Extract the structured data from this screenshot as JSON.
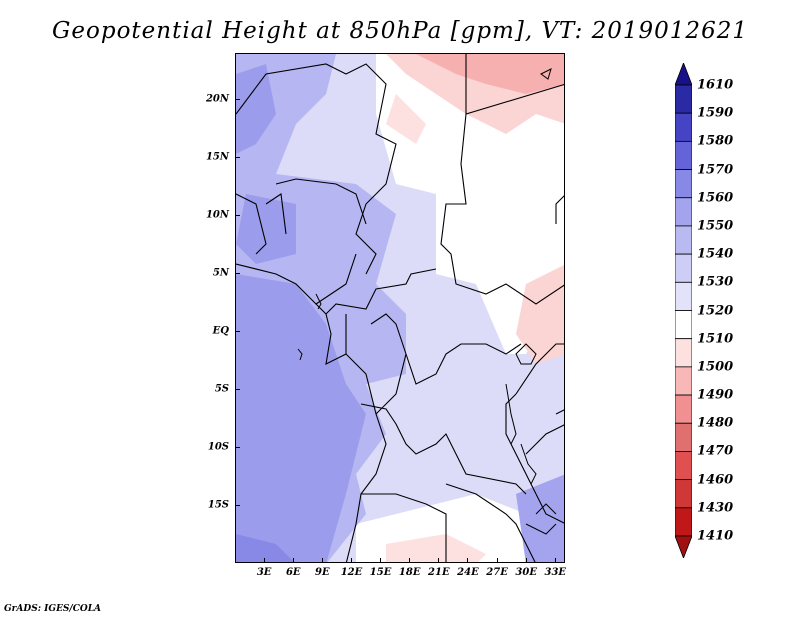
{
  "title": "Geopotential Height at 850hPa [gpm], VT: 2019012621",
  "credit": "GrADS: IGES/COLA",
  "map": {
    "lon_range": [
      0,
      34
    ],
    "lat_range": [
      -20,
      24
    ],
    "y_ticks": [
      {
        "label": "20N",
        "lat": 20
      },
      {
        "label": "15N",
        "lat": 15
      },
      {
        "label": "10N",
        "lat": 10
      },
      {
        "label": "5N",
        "lat": 5
      },
      {
        "label": "EQ",
        "lat": 0
      },
      {
        "label": "5S",
        "lat": -5
      },
      {
        "label": "10S",
        "lat": -10
      },
      {
        "label": "15S",
        "lat": -15
      }
    ],
    "x_ticks": [
      {
        "label": "3E",
        "lon": 3
      },
      {
        "label": "6E",
        "lon": 6
      },
      {
        "label": "9E",
        "lon": 9
      },
      {
        "label": "12E",
        "lon": 12
      },
      {
        "label": "15E",
        "lon": 15
      },
      {
        "label": "18E",
        "lon": 18
      },
      {
        "label": "21E",
        "lon": 21
      },
      {
        "label": "24E",
        "lon": 24
      },
      {
        "label": "27E",
        "lon": 27
      },
      {
        "label": "30E",
        "lon": 30
      },
      {
        "label": "33E",
        "lon": 33
      }
    ]
  },
  "colorbar": {
    "levels": [
      1410,
      1430,
      1460,
      1470,
      1480,
      1490,
      1500,
      1510,
      1520,
      1530,
      1540,
      1550,
      1560,
      1570,
      1580,
      1590,
      1610
    ],
    "colors": [
      "#a01010",
      "#c01818",
      "#d03838",
      "#e05050",
      "#e07070",
      "#f09090",
      "#f8b8b8",
      "#fde0e0",
      "#ffffff",
      "#e2e2fa",
      "#cdcdf6",
      "#babaf2",
      "#a4a4ee",
      "#8888e6",
      "#6464d8",
      "#4444c4",
      "#2a2aa4",
      "#18108a"
    ]
  }
}
